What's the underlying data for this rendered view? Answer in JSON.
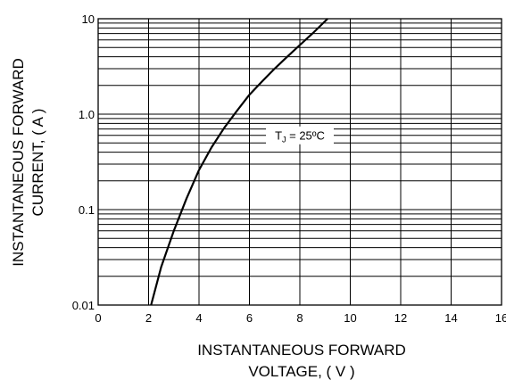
{
  "chart_data": {
    "type": "line",
    "title": "",
    "xlabel": [
      "INSTANTANEOUS FORWARD",
      "VOLTAGE, ( V )"
    ],
    "ylabel": [
      "INSTANTANEOUS FORWARD",
      "CURRENT, ( A )"
    ],
    "xlim": [
      0,
      16
    ],
    "ylim": [
      0.01,
      10
    ],
    "yscale": "log",
    "grid": true,
    "x_ticks": [
      0,
      2,
      4,
      6,
      8,
      10,
      12,
      14,
      16
    ],
    "x_tick_labels": [
      "0",
      "2",
      "4",
      "6",
      "8",
      "10",
      "12",
      "14",
      "16"
    ],
    "y_ticks": [
      0.01,
      0.1,
      1.0,
      10
    ],
    "y_tick_labels": [
      "0.01",
      "0.1",
      "1.0",
      "10"
    ],
    "annotation": {
      "text_main": "T",
      "text_sub": "J",
      "text_tail": " = 25ºC",
      "x": 8.0,
      "y": 0.6
    },
    "series": [
      {
        "x": [
          2.1,
          2.5,
          3.0,
          3.5,
          4.0,
          4.5,
          5.0,
          5.5,
          6.0,
          6.5,
          7.0,
          7.5,
          8.0,
          8.5,
          9.1
        ],
        "y": [
          0.01,
          0.025,
          0.06,
          0.13,
          0.26,
          0.45,
          0.72,
          1.08,
          1.6,
          2.2,
          3.0,
          4.0,
          5.3,
          7.0,
          10
        ]
      }
    ]
  }
}
